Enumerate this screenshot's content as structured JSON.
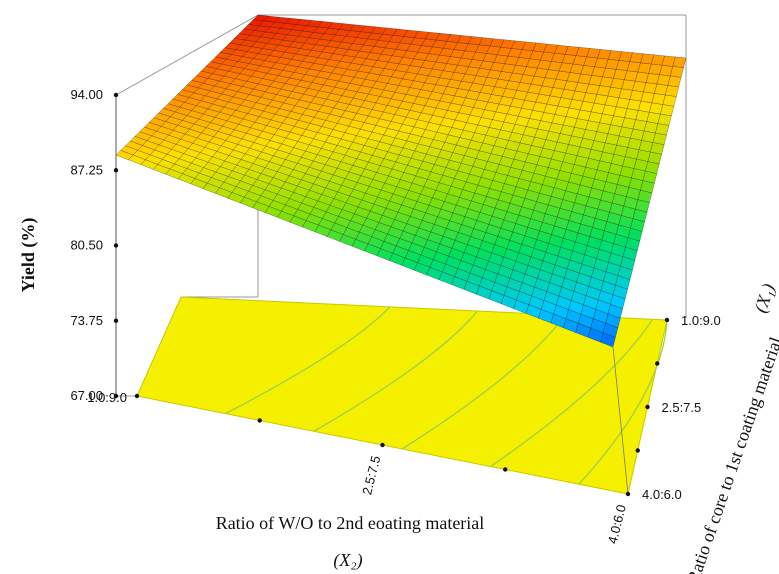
{
  "chart_data": {
    "type": "surface3d",
    "zlabel": "Yield (%)",
    "z_ticks": [
      "94.00",
      "87.25",
      "80.50",
      "73.75",
      "67.00"
    ],
    "zlim": [
      67.0,
      94.0
    ],
    "x1_label": "Ratio of core to 1st coating material",
    "x1_symbol": "(X₁)",
    "x1_ticks": [
      "1.0:9.0",
      "2.5:7.5",
      "4.0:6.0"
    ],
    "x2_label": "Ratio of W/O to 2nd eoating material",
    "x2_symbol": "(X₂)",
    "x2_ticks": [
      "1.0:9.0",
      "2.5:7.5",
      "4.0:6.0"
    ],
    "surface_corners": [
      {
        "x1": "1.0:9.0",
        "x2": "1.0:9.0",
        "yield": 98.0
      },
      {
        "x1": "1.0:9.0",
        "x2": "4.0:6.0",
        "yield": 91.0
      },
      {
        "x1": "4.0:6.0",
        "x2": "1.0:9.0",
        "yield": 87.5
      },
      {
        "x1": "4.0:6.0",
        "x2": "4.0:6.0",
        "yield": 64.0
      }
    ],
    "contour_fill_color": "#f5f000",
    "contour_line_color": "#9ccf49",
    "colormap": [
      "#0030ff",
      "#00c8ff",
      "#00e060",
      "#90e000",
      "#ffe000",
      "#ff8000",
      "#e80000"
    ]
  }
}
